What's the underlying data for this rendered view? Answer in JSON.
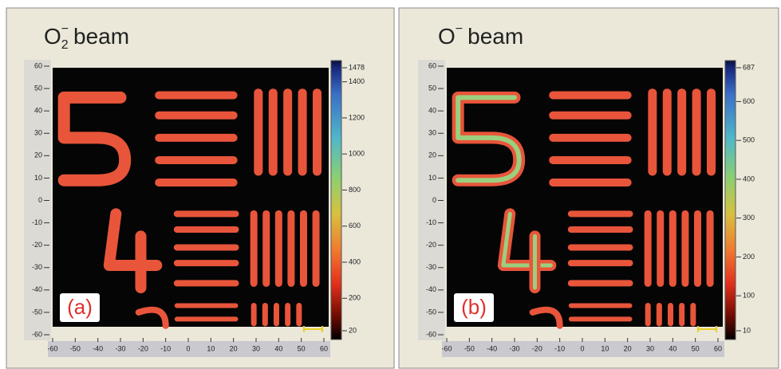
{
  "chart_data": [
    {
      "type": "image",
      "title": {
        "base": "O",
        "sub": "2",
        "sup": "−",
        "rest": "beam"
      },
      "panel_label": "(a)",
      "xlim": [
        -60,
        60
      ],
      "ylim": [
        -60,
        60
      ],
      "xticks": [
        -60,
        -50,
        -40,
        -30,
        -20,
        -10,
        0,
        10,
        20,
        30,
        40,
        50,
        60
      ],
      "yticks": [
        60,
        50,
        40,
        30,
        20,
        10,
        0,
        -10,
        -20,
        -30,
        -40,
        -50,
        -60
      ],
      "colorbar": {
        "lim": [
          20,
          1478
        ],
        "ticks": [
          1478,
          1400,
          1200,
          1000,
          800,
          600,
          400,
          200,
          20
        ]
      }
    },
    {
      "type": "image",
      "title": {
        "base": "O",
        "sup": "−",
        "rest": "beam"
      },
      "panel_label": "(b)",
      "xlim": [
        -60,
        60
      ],
      "ylim": [
        -60,
        60
      ],
      "xticks": [
        -60,
        -50,
        -40,
        -30,
        -20,
        -10,
        0,
        10,
        20,
        30,
        40,
        50,
        60
      ],
      "yticks": [
        60,
        50,
        40,
        30,
        20,
        10,
        0,
        -10,
        -20,
        -30,
        -40,
        -50,
        -60
      ],
      "colorbar": {
        "lim": [
          10,
          687
        ],
        "ticks": [
          687,
          600,
          500,
          400,
          300,
          200,
          100,
          10
        ]
      }
    }
  ]
}
